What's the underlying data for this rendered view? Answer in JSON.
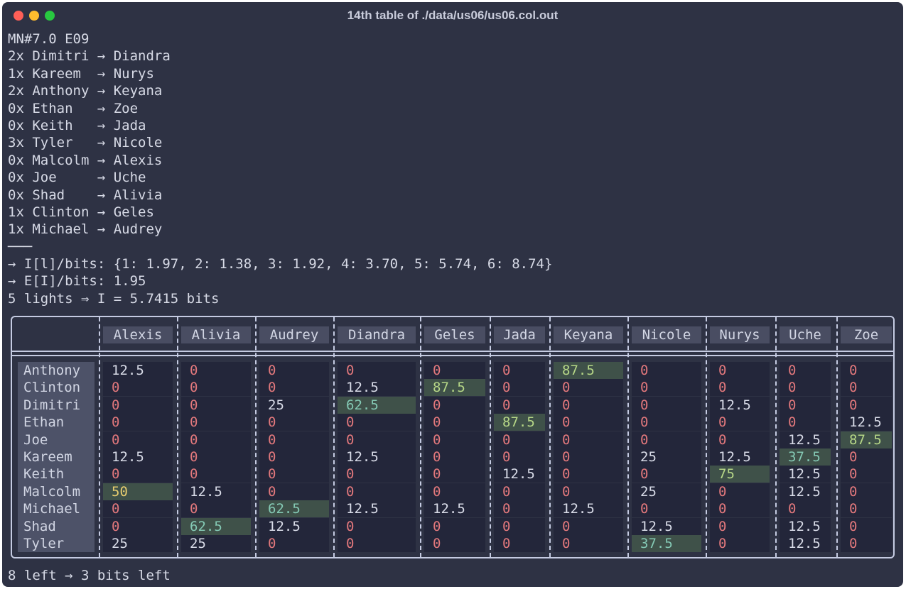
{
  "window": {
    "title": "14th table of ./data/us06/us06.col.out"
  },
  "terminal": {
    "lines": [
      "MN#7.0 E09",
      "2x Dimitri → Diandra",
      "1x Kareem  → Nurys",
      "2x Anthony → Keyana",
      "0x Ethan   → Zoe",
      "0x Keith   → Jada",
      "3x Tyler   → Nicole",
      "0x Malcolm → Alexis",
      "0x Joe     → Uche",
      "0x Shad    → Alivia",
      "1x Clinton → Geles",
      "1x Michael → Audrey",
      "───",
      "→ I[l]/bits: {1: 1.97, 2: 1.38, 3: 1.92, 4: 3.70, 5: 5.74, 6: 8.74}",
      "→ E[I]/bits: 1.95",
      "5 lights ⇒ I = 5.7415 bits"
    ],
    "footer": "8 left → 3 bits left"
  },
  "table": {
    "columns": [
      "Alexis",
      "Alivia",
      "Audrey",
      "Diandra",
      "Geles",
      "Jada",
      "Keyana",
      "Nicole",
      "Nurys",
      "Uche",
      "Zoe"
    ],
    "rows": [
      {
        "name": "Anthony",
        "cells": [
          "12.5",
          "0",
          "0",
          "0",
          "0",
          "0",
          "87.5",
          "0",
          "0",
          "0",
          "0"
        ]
      },
      {
        "name": "Clinton",
        "cells": [
          "0",
          "0",
          "0",
          "12.5",
          "87.5",
          "0",
          "0",
          "0",
          "0",
          "0",
          "0"
        ]
      },
      {
        "name": "Dimitri",
        "cells": [
          "0",
          "0",
          "25",
          "62.5",
          "0",
          "0",
          "0",
          "0",
          "12.5",
          "0",
          "0"
        ]
      },
      {
        "name": "Ethan",
        "cells": [
          "0",
          "0",
          "0",
          "0",
          "0",
          "87.5",
          "0",
          "0",
          "0",
          "0",
          "12.5"
        ]
      },
      {
        "name": "Joe",
        "cells": [
          "0",
          "0",
          "0",
          "0",
          "0",
          "0",
          "0",
          "0",
          "0",
          "12.5",
          "87.5"
        ]
      },
      {
        "name": "Kareem",
        "cells": [
          "12.5",
          "0",
          "0",
          "12.5",
          "0",
          "0",
          "0",
          "25",
          "12.5",
          "37.5",
          "0"
        ]
      },
      {
        "name": "Keith",
        "cells": [
          "0",
          "0",
          "0",
          "0",
          "0",
          "12.5",
          "0",
          "0",
          "75",
          "12.5",
          "0"
        ]
      },
      {
        "name": "Malcolm",
        "cells": [
          "50",
          "12.5",
          "0",
          "0",
          "0",
          "0",
          "0",
          "25",
          "0",
          "12.5",
          "0"
        ]
      },
      {
        "name": "Michael",
        "cells": [
          "0",
          "0",
          "62.5",
          "12.5",
          "12.5",
          "0",
          "12.5",
          "0",
          "0",
          "0",
          "0"
        ]
      },
      {
        "name": "Shad",
        "cells": [
          "0",
          "62.5",
          "12.5",
          "0",
          "0",
          "0",
          "0",
          "12.5",
          "0",
          "12.5",
          "0"
        ]
      },
      {
        "name": "Tyler",
        "cells": [
          "25",
          "25",
          "0",
          "0",
          "0",
          "0",
          "0",
          "37.5",
          "0",
          "12.5",
          "0"
        ]
      }
    ]
  },
  "colors": {
    "window_bg": "#2e3244",
    "highlight_bg": "#3f5149",
    "highlight_green": "#b6d787",
    "highlight_blue": "#84c9b4",
    "highlight_yellow": "#e6cc6f",
    "zero_color": "#e2787c"
  }
}
